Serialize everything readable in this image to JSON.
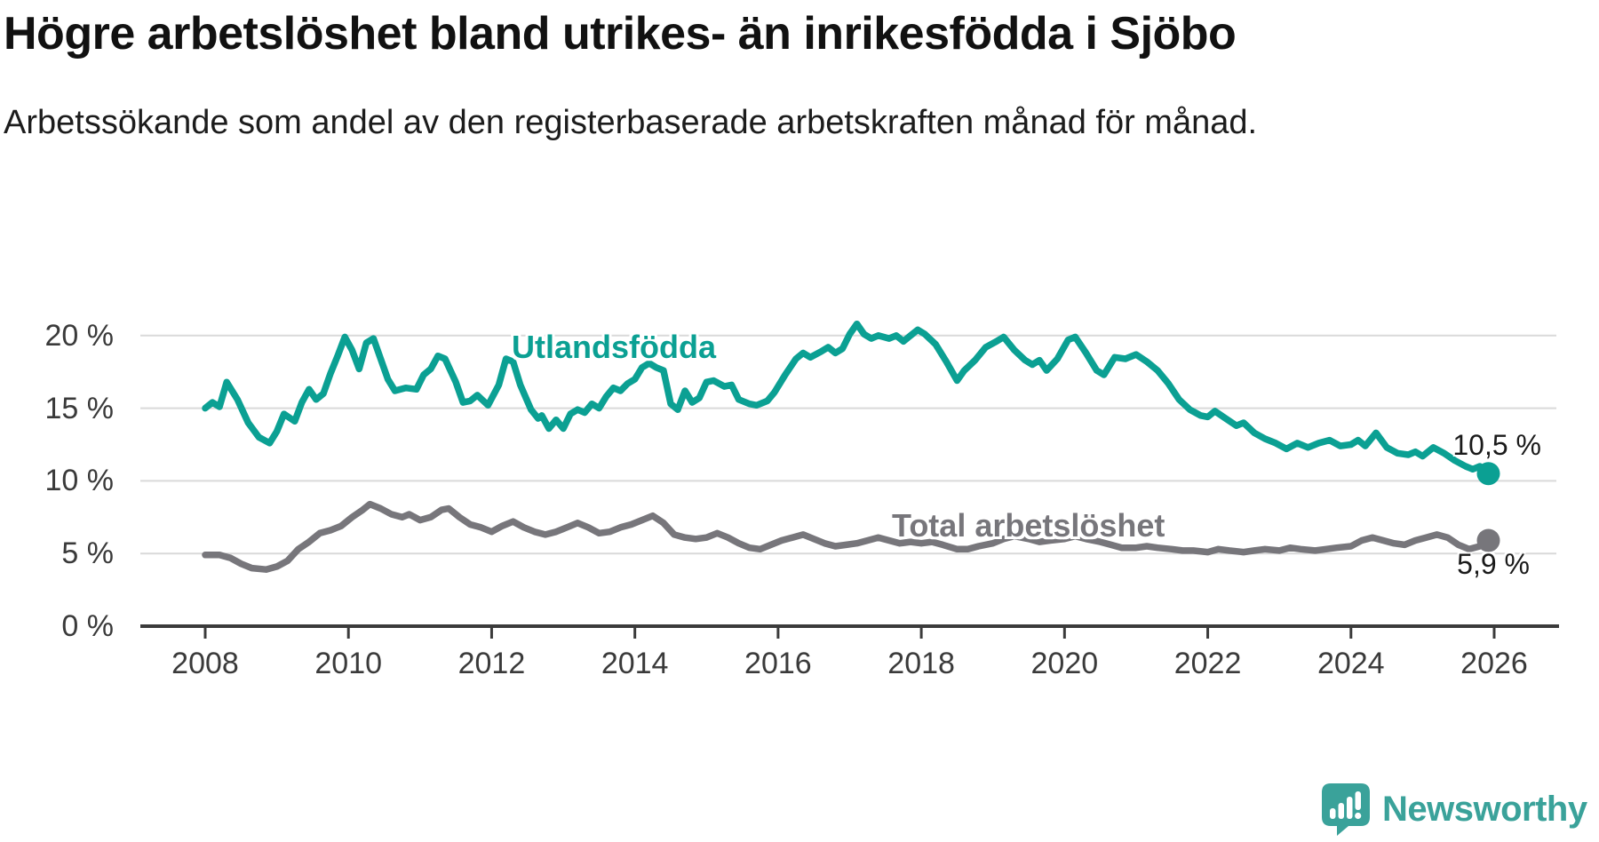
{
  "header": {
    "title": "Högre arbetslöshet bland utrikes- än inrikesfödda i Sjöbo",
    "subtitle": "Arbetssökande som andel av den registerbaserade arbetskraften månad för månad."
  },
  "chart_data": {
    "type": "line",
    "title": "Högre arbetslöshet bland utrikes- än inrikesfödda i Sjöbo",
    "subtitle": "Arbetssökande som andel av den registerbaserade arbetskraften månad för månad.",
    "xlabel": "",
    "ylabel": "",
    "unit": "%",
    "xlim": [
      2007.6,
      2026.9
    ],
    "ylim": [
      0,
      22
    ],
    "grid": "horizontal",
    "legend_position": "inline-labels",
    "x_axis": {
      "ticks": [
        2008,
        2010,
        2012,
        2014,
        2016,
        2018,
        2020,
        2022,
        2024,
        2026
      ],
      "labels": [
        "2008",
        "2010",
        "2012",
        "2014",
        "2016",
        "2018",
        "2020",
        "2022",
        "2024",
        "2026"
      ]
    },
    "y_axis": {
      "ticks": [
        0,
        5,
        10,
        15,
        20
      ],
      "labels": [
        "0 %",
        "5 %",
        "10 %",
        "15 %",
        "20 %"
      ]
    },
    "style": {
      "grid_color": "#d9d9d9",
      "axis_color": "#3b3b3b",
      "text_color": "#1a1a1a"
    },
    "series": [
      {
        "name": "Utlandsfödda",
        "color": "#0ba093",
        "end_value": 10.5,
        "end_label": "10,5 %",
        "points": [
          [
            2008.0,
            15.0
          ],
          [
            2008.1,
            15.4
          ],
          [
            2008.2,
            15.1
          ],
          [
            2008.3,
            16.8
          ],
          [
            2008.45,
            15.6
          ],
          [
            2008.6,
            14.0
          ],
          [
            2008.75,
            13.0
          ],
          [
            2008.9,
            12.6
          ],
          [
            2009.0,
            13.4
          ],
          [
            2009.1,
            14.6
          ],
          [
            2009.25,
            14.1
          ],
          [
            2009.35,
            15.4
          ],
          [
            2009.45,
            16.3
          ],
          [
            2009.55,
            15.6
          ],
          [
            2009.65,
            16.0
          ],
          [
            2009.75,
            17.4
          ],
          [
            2009.85,
            18.6
          ],
          [
            2009.95,
            19.9
          ],
          [
            2010.05,
            19.0
          ],
          [
            2010.15,
            17.7
          ],
          [
            2010.25,
            19.5
          ],
          [
            2010.35,
            19.8
          ],
          [
            2010.45,
            18.4
          ],
          [
            2010.55,
            17.0
          ],
          [
            2010.65,
            16.2
          ],
          [
            2010.8,
            16.4
          ],
          [
            2010.95,
            16.3
          ],
          [
            2011.05,
            17.3
          ],
          [
            2011.15,
            17.7
          ],
          [
            2011.25,
            18.6
          ],
          [
            2011.35,
            18.4
          ],
          [
            2011.5,
            16.8
          ],
          [
            2011.6,
            15.4
          ],
          [
            2011.7,
            15.5
          ],
          [
            2011.8,
            15.9
          ],
          [
            2011.95,
            15.2
          ],
          [
            2012.1,
            16.6
          ],
          [
            2012.2,
            18.4
          ],
          [
            2012.3,
            18.2
          ],
          [
            2012.4,
            16.6
          ],
          [
            2012.55,
            14.9
          ],
          [
            2012.65,
            14.3
          ],
          [
            2012.7,
            14.5
          ],
          [
            2012.8,
            13.6
          ],
          [
            2012.9,
            14.2
          ],
          [
            2013.0,
            13.6
          ],
          [
            2013.1,
            14.6
          ],
          [
            2013.2,
            14.9
          ],
          [
            2013.3,
            14.7
          ],
          [
            2013.4,
            15.3
          ],
          [
            2013.5,
            15.0
          ],
          [
            2013.6,
            15.8
          ],
          [
            2013.7,
            16.4
          ],
          [
            2013.8,
            16.2
          ],
          [
            2013.9,
            16.7
          ],
          [
            2014.0,
            17.0
          ],
          [
            2014.1,
            17.8
          ],
          [
            2014.2,
            18.1
          ],
          [
            2014.3,
            17.8
          ],
          [
            2014.4,
            17.6
          ],
          [
            2014.5,
            15.3
          ],
          [
            2014.6,
            14.9
          ],
          [
            2014.7,
            16.2
          ],
          [
            2014.8,
            15.4
          ],
          [
            2014.9,
            15.7
          ],
          [
            2015.0,
            16.8
          ],
          [
            2015.1,
            16.9
          ],
          [
            2015.25,
            16.5
          ],
          [
            2015.35,
            16.6
          ],
          [
            2015.45,
            15.6
          ],
          [
            2015.6,
            15.3
          ],
          [
            2015.7,
            15.2
          ],
          [
            2015.85,
            15.5
          ],
          [
            2015.95,
            16.1
          ],
          [
            2016.1,
            17.3
          ],
          [
            2016.25,
            18.4
          ],
          [
            2016.35,
            18.8
          ],
          [
            2016.45,
            18.5
          ],
          [
            2016.6,
            18.9
          ],
          [
            2016.7,
            19.2
          ],
          [
            2016.8,
            18.8
          ],
          [
            2016.9,
            19.1
          ],
          [
            2017.0,
            20.1
          ],
          [
            2017.1,
            20.8
          ],
          [
            2017.2,
            20.1
          ],
          [
            2017.3,
            19.8
          ],
          [
            2017.4,
            20.0
          ],
          [
            2017.55,
            19.8
          ],
          [
            2017.65,
            20.0
          ],
          [
            2017.75,
            19.6
          ],
          [
            2017.85,
            20.0
          ],
          [
            2017.95,
            20.4
          ],
          [
            2018.05,
            20.1
          ],
          [
            2018.2,
            19.4
          ],
          [
            2018.35,
            18.2
          ],
          [
            2018.5,
            16.9
          ],
          [
            2018.6,
            17.6
          ],
          [
            2018.75,
            18.3
          ],
          [
            2018.9,
            19.2
          ],
          [
            2019.05,
            19.6
          ],
          [
            2019.15,
            19.9
          ],
          [
            2019.3,
            19.0
          ],
          [
            2019.45,
            18.3
          ],
          [
            2019.55,
            18.0
          ],
          [
            2019.65,
            18.3
          ],
          [
            2019.75,
            17.6
          ],
          [
            2019.9,
            18.4
          ],
          [
            2020.05,
            19.7
          ],
          [
            2020.15,
            19.9
          ],
          [
            2020.3,
            18.8
          ],
          [
            2020.45,
            17.6
          ],
          [
            2020.55,
            17.3
          ],
          [
            2020.7,
            18.5
          ],
          [
            2020.85,
            18.4
          ],
          [
            2021.0,
            18.7
          ],
          [
            2021.15,
            18.2
          ],
          [
            2021.3,
            17.6
          ],
          [
            2021.45,
            16.7
          ],
          [
            2021.6,
            15.6
          ],
          [
            2021.75,
            14.9
          ],
          [
            2021.9,
            14.5
          ],
          [
            2022.0,
            14.4
          ],
          [
            2022.1,
            14.8
          ],
          [
            2022.25,
            14.3
          ],
          [
            2022.4,
            13.8
          ],
          [
            2022.5,
            14.0
          ],
          [
            2022.65,
            13.3
          ],
          [
            2022.8,
            12.9
          ],
          [
            2022.95,
            12.6
          ],
          [
            2023.1,
            12.2
          ],
          [
            2023.25,
            12.6
          ],
          [
            2023.4,
            12.3
          ],
          [
            2023.55,
            12.6
          ],
          [
            2023.7,
            12.8
          ],
          [
            2023.85,
            12.4
          ],
          [
            2024.0,
            12.5
          ],
          [
            2024.1,
            12.8
          ],
          [
            2024.2,
            12.4
          ],
          [
            2024.35,
            13.3
          ],
          [
            2024.5,
            12.3
          ],
          [
            2024.65,
            11.9
          ],
          [
            2024.8,
            11.8
          ],
          [
            2024.9,
            12.0
          ],
          [
            2025.0,
            11.7
          ],
          [
            2025.15,
            12.3
          ],
          [
            2025.3,
            11.9
          ],
          [
            2025.45,
            11.4
          ],
          [
            2025.6,
            11.0
          ],
          [
            2025.7,
            10.8
          ],
          [
            2025.8,
            11.0
          ],
          [
            2025.92,
            10.5
          ]
        ]
      },
      {
        "name": "Total arbetslöshet",
        "color": "#77767b",
        "end_value": 5.9,
        "end_label": "5,9 %",
        "points": [
          [
            2008.0,
            4.9
          ],
          [
            2008.2,
            4.9
          ],
          [
            2008.35,
            4.7
          ],
          [
            2008.5,
            4.3
          ],
          [
            2008.65,
            4.0
          ],
          [
            2008.85,
            3.9
          ],
          [
            2009.0,
            4.1
          ],
          [
            2009.15,
            4.5
          ],
          [
            2009.3,
            5.3
          ],
          [
            2009.45,
            5.8
          ],
          [
            2009.6,
            6.4
          ],
          [
            2009.75,
            6.6
          ],
          [
            2009.9,
            6.9
          ],
          [
            2010.05,
            7.5
          ],
          [
            2010.2,
            8.0
          ],
          [
            2010.3,
            8.4
          ],
          [
            2010.45,
            8.1
          ],
          [
            2010.6,
            7.7
          ],
          [
            2010.75,
            7.5
          ],
          [
            2010.85,
            7.7
          ],
          [
            2011.0,
            7.3
          ],
          [
            2011.15,
            7.5
          ],
          [
            2011.3,
            8.0
          ],
          [
            2011.4,
            8.1
          ],
          [
            2011.55,
            7.5
          ],
          [
            2011.7,
            7.0
          ],
          [
            2011.85,
            6.8
          ],
          [
            2012.0,
            6.5
          ],
          [
            2012.15,
            6.9
          ],
          [
            2012.3,
            7.2
          ],
          [
            2012.45,
            6.8
          ],
          [
            2012.6,
            6.5
          ],
          [
            2012.75,
            6.3
          ],
          [
            2012.9,
            6.5
          ],
          [
            2013.05,
            6.8
          ],
          [
            2013.2,
            7.1
          ],
          [
            2013.35,
            6.8
          ],
          [
            2013.5,
            6.4
          ],
          [
            2013.65,
            6.5
          ],
          [
            2013.8,
            6.8
          ],
          [
            2013.95,
            7.0
          ],
          [
            2014.1,
            7.3
          ],
          [
            2014.25,
            7.6
          ],
          [
            2014.4,
            7.1
          ],
          [
            2014.55,
            6.3
          ],
          [
            2014.7,
            6.1
          ],
          [
            2014.85,
            6.0
          ],
          [
            2015.0,
            6.1
          ],
          [
            2015.15,
            6.4
          ],
          [
            2015.3,
            6.1
          ],
          [
            2015.45,
            5.7
          ],
          [
            2015.6,
            5.4
          ],
          [
            2015.75,
            5.3
          ],
          [
            2015.9,
            5.6
          ],
          [
            2016.05,
            5.9
          ],
          [
            2016.2,
            6.1
          ],
          [
            2016.35,
            6.3
          ],
          [
            2016.5,
            6.0
          ],
          [
            2016.65,
            5.7
          ],
          [
            2016.8,
            5.5
          ],
          [
            2016.95,
            5.6
          ],
          [
            2017.1,
            5.7
          ],
          [
            2017.25,
            5.9
          ],
          [
            2017.4,
            6.1
          ],
          [
            2017.55,
            5.9
          ],
          [
            2017.7,
            5.7
          ],
          [
            2017.85,
            5.8
          ],
          [
            2018.0,
            5.7
          ],
          [
            2018.15,
            5.8
          ],
          [
            2018.3,
            5.6
          ],
          [
            2018.5,
            5.3
          ],
          [
            2018.65,
            5.3
          ],
          [
            2018.8,
            5.5
          ],
          [
            2019.0,
            5.7
          ],
          [
            2019.15,
            6.0
          ],
          [
            2019.3,
            6.2
          ],
          [
            2019.5,
            6.0
          ],
          [
            2019.65,
            5.8
          ],
          [
            2019.8,
            5.9
          ],
          [
            2020.0,
            6.0
          ],
          [
            2020.15,
            6.2
          ],
          [
            2020.3,
            6.0
          ],
          [
            2020.5,
            5.8
          ],
          [
            2020.65,
            5.6
          ],
          [
            2020.8,
            5.4
          ],
          [
            2021.0,
            5.4
          ],
          [
            2021.15,
            5.5
          ],
          [
            2021.3,
            5.4
          ],
          [
            2021.5,
            5.3
          ],
          [
            2021.65,
            5.2
          ],
          [
            2021.8,
            5.2
          ],
          [
            2022.0,
            5.1
          ],
          [
            2022.15,
            5.3
          ],
          [
            2022.3,
            5.2
          ],
          [
            2022.5,
            5.1
          ],
          [
            2022.65,
            5.2
          ],
          [
            2022.8,
            5.3
          ],
          [
            2023.0,
            5.2
          ],
          [
            2023.15,
            5.4
          ],
          [
            2023.3,
            5.3
          ],
          [
            2023.5,
            5.2
          ],
          [
            2023.65,
            5.3
          ],
          [
            2023.8,
            5.4
          ],
          [
            2024.0,
            5.5
          ],
          [
            2024.15,
            5.9
          ],
          [
            2024.3,
            6.1
          ],
          [
            2024.45,
            5.9
          ],
          [
            2024.6,
            5.7
          ],
          [
            2024.75,
            5.6
          ],
          [
            2024.9,
            5.9
          ],
          [
            2025.05,
            6.1
          ],
          [
            2025.2,
            6.3
          ],
          [
            2025.35,
            6.1
          ],
          [
            2025.5,
            5.6
          ],
          [
            2025.65,
            5.3
          ],
          [
            2025.8,
            5.5
          ],
          [
            2025.92,
            5.9
          ]
        ]
      }
    ]
  },
  "footer": {
    "brand": "Newsworthy",
    "brand_color": "#3aa29a"
  }
}
